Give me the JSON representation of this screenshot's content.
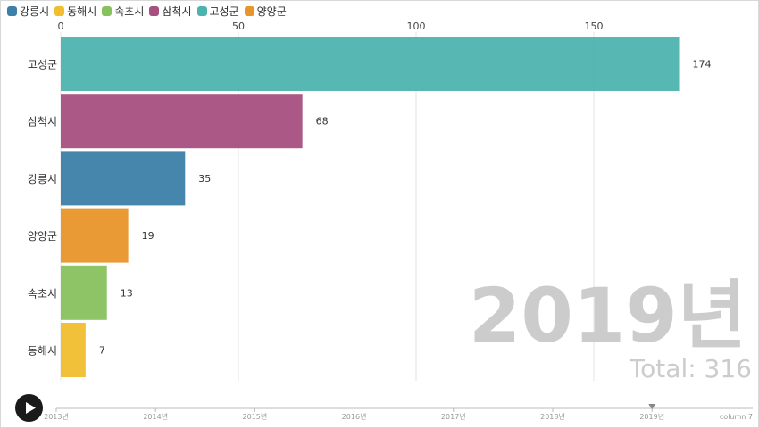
{
  "chart_data": {
    "type": "bar",
    "orientation": "horizontal",
    "legend_position": "top-left",
    "grid": true,
    "xlim": [
      0,
      174
    ],
    "x_ticks": [
      "0",
      "50",
      "100",
      "150"
    ],
    "legend": [
      {
        "name": "강릉시",
        "color": "#3d7fa8"
      },
      {
        "name": "동해시",
        "color": "#f0be2e"
      },
      {
        "name": "속초시",
        "color": "#89c15e"
      },
      {
        "name": "삼척시",
        "color": "#a74f7f"
      },
      {
        "name": "고성군",
        "color": "#4eb3ae"
      },
      {
        "name": "양양군",
        "color": "#e8952a"
      }
    ],
    "categories": [
      "고성군",
      "삼척시",
      "강릉시",
      "양양군",
      "속초시",
      "동해시"
    ],
    "values": [
      174,
      68,
      35,
      19,
      13,
      7
    ],
    "value_labels": [
      "174",
      "68",
      "35",
      "19",
      "13",
      "7"
    ],
    "bar_colors": [
      "#4eb3ae",
      "#a74f7f",
      "#3d7fa8",
      "#e8952a",
      "#89c15e",
      "#f0be2e"
    ],
    "year_label": "2019년",
    "total_label": "Total: 316"
  },
  "timeline": {
    "ticks": [
      "2013년",
      "2014년",
      "2015년",
      "2016년",
      "2017년",
      "2018년",
      "2019년"
    ],
    "current": "2019년",
    "end_label": "column 7"
  },
  "controls": {
    "play_icon": "play-icon"
  }
}
